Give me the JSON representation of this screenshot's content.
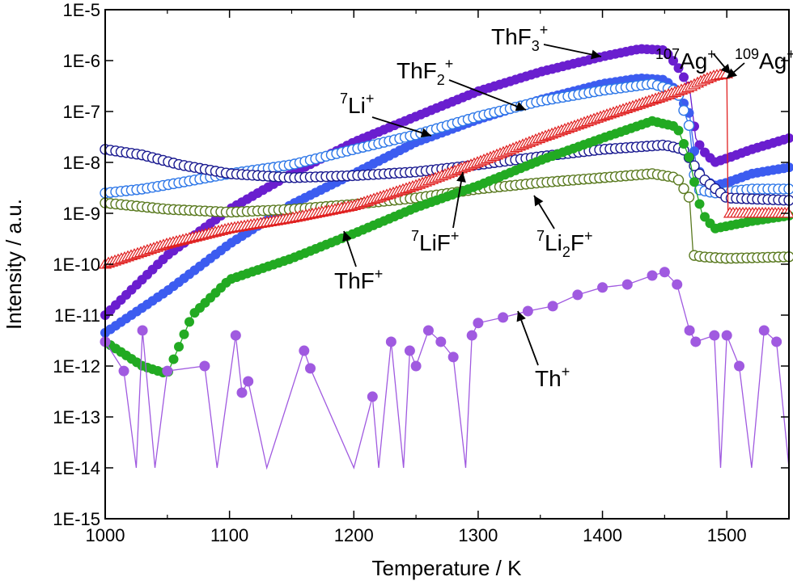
{
  "chart_data": {
    "type": "scatter",
    "title": "",
    "xlabel": "Temperature / K",
    "ylabel": "Intensity / a.u.",
    "xlim": [
      1000,
      1550
    ],
    "ylim_log10": [
      -15,
      -5
    ],
    "yscale": "log",
    "x_ticks": [
      1000,
      1100,
      1200,
      1300,
      1400,
      1500
    ],
    "x_tick_labels": [
      "1000",
      "1100",
      "1200",
      "1300",
      "1400",
      "1500"
    ],
    "y_tick_labels": [
      "1E-15",
      "1E-14",
      "1E-13",
      "1E-12",
      "1E-11",
      "1E-10",
      "1E-9",
      "1E-8",
      "1E-7",
      "1E-6",
      "1E-5"
    ],
    "grid": false,
    "series": [
      {
        "name": "ThF3+",
        "color": "#6a1ecf",
        "marker": "filled-circle",
        "x": [
          1000,
          1050,
          1100,
          1150,
          1200,
          1250,
          1300,
          1350,
          1400,
          1430,
          1450,
          1460,
          1470,
          1475,
          1480,
          1490,
          1500,
          1520,
          1550
        ],
        "y": [
          1e-11,
          1.5e-10,
          1.2e-09,
          6e-09,
          2.5e-08,
          8e-08,
          2.5e-07,
          6e-07,
          1.2e-06,
          1.7e-06,
          1.6e-06,
          8e-07,
          3e-07,
          3e-08,
          1.8e-08,
          1e-08,
          1.2e-08,
          1.8e-08,
          3e-08
        ]
      },
      {
        "name": "ThF2+",
        "color": "#3c5cf0",
        "marker": "filled-circle",
        "x": [
          1000,
          1050,
          1100,
          1150,
          1200,
          1250,
          1300,
          1350,
          1400,
          1430,
          1450,
          1460,
          1470,
          1475,
          1480,
          1490,
          1500,
          1520,
          1550
        ],
        "y": [
          4.5e-12,
          3e-11,
          2.5e-10,
          1.5e-09,
          6e-09,
          2.5e-08,
          7e-08,
          1.7e-07,
          3.5e-07,
          4.5e-07,
          4.2e-07,
          2.5e-07,
          9e-08,
          1e-08,
          5e-09,
          3.5e-09,
          4e-09,
          6e-09,
          8e-09
        ]
      },
      {
        "name": "7Li+",
        "color": "#2f78e8",
        "marker": "open-circle",
        "x": [
          1000,
          1030,
          1060,
          1100,
          1150,
          1200,
          1250,
          1300,
          1350,
          1400,
          1440,
          1460,
          1470,
          1475,
          1490,
          1520,
          1550
        ],
        "y": [
          2.5e-09,
          3e-09,
          4e-09,
          6e-09,
          9e-09,
          1.8e-08,
          3.5e-08,
          8e-08,
          1.6e-07,
          2.6e-07,
          3.5e-07,
          2.5e-07,
          5e-08,
          3e-09,
          2.5e-09,
          3e-09,
          3e-09
        ]
      },
      {
        "name": "7LiF+",
        "color": "#1a1a90",
        "marker": "open-circle",
        "x": [
          1000,
          1030,
          1060,
          1100,
          1150,
          1200,
          1250,
          1300,
          1350,
          1400,
          1450,
          1465,
          1470,
          1480,
          1500,
          1550
        ],
        "y": [
          1.8e-08,
          1.4e-08,
          9e-09,
          6e-09,
          5e-09,
          5.5e-09,
          6.5e-09,
          9e-09,
          1.3e-08,
          1.8e-08,
          2.2e-08,
          1.8e-08,
          1.2e-08,
          5e-09,
          2e-09,
          1.8e-09
        ]
      },
      {
        "name": "7Li2F+",
        "color": "#5a7a20",
        "marker": "open-circle",
        "x": [
          1000,
          1050,
          1100,
          1150,
          1200,
          1250,
          1300,
          1350,
          1400,
          1440,
          1460,
          1470,
          1473,
          1480,
          1500,
          1550
        ],
        "y": [
          1.6e-09,
          1.2e-09,
          1.05e-09,
          1.2e-09,
          1.5e-09,
          2e-09,
          3e-09,
          4e-09,
          5e-09,
          6e-09,
          5e-09,
          2e-09,
          1.5e-10,
          1.4e-10,
          1.3e-10,
          1.4e-10
        ]
      },
      {
        "name": "ThF+",
        "color": "#22aa22",
        "marker": "filled-circle",
        "x": [
          1000,
          1030,
          1050,
          1070,
          1100,
          1150,
          1200,
          1250,
          1300,
          1350,
          1400,
          1440,
          1460,
          1470,
          1475,
          1480,
          1490,
          1520,
          1550
        ],
        "y": [
          3e-12,
          1e-12,
          7e-13,
          1e-11,
          5e-11,
          1.3e-10,
          4e-10,
          1.3e-09,
          3.5e-09,
          1.1e-08,
          3e-08,
          6.5e-08,
          5e-08,
          1.2e-08,
          3e-09,
          1e-09,
          5e-10,
          7e-10,
          9e-10
        ]
      },
      {
        "name": "107Ag+ / 109Ag+",
        "color": "#e02020",
        "marker": "open-triangle",
        "x": [
          1000,
          1050,
          1100,
          1150,
          1200,
          1250,
          1300,
          1350,
          1400,
          1450,
          1470,
          1480,
          1490,
          1500,
          1501,
          1520,
          1550
        ],
        "y": [
          1e-10,
          2.5e-10,
          5e-10,
          8e-10,
          1.4e-09,
          3.5e-09,
          1e-08,
          3e-08,
          8e-08,
          2e-07,
          3e-07,
          4e-07,
          5e-07,
          5.5e-07,
          1e-09,
          1e-09,
          1e-09
        ]
      },
      {
        "name": "Th+",
        "color": "#a05ae0",
        "marker": "filled-circle",
        "x": [
          1000,
          1015,
          1025,
          1030,
          1040,
          1050,
          1080,
          1090,
          1105,
          1110,
          1115,
          1130,
          1160,
          1165,
          1200,
          1215,
          1220,
          1230,
          1240,
          1245,
          1250,
          1260,
          1270,
          1280,
          1290,
          1295,
          1300,
          1320,
          1340,
          1360,
          1380,
          1400,
          1420,
          1440,
          1450,
          1460,
          1470,
          1475,
          1490,
          1495,
          1500,
          1510,
          1520,
          1530,
          1540,
          1550
        ],
        "y": [
          3e-12,
          8e-13,
          1e-14,
          5e-12,
          1e-14,
          8e-13,
          1e-12,
          1e-14,
          4e-12,
          3e-13,
          5e-13,
          1e-14,
          2e-12,
          9e-13,
          1e-14,
          2.5e-13,
          1e-14,
          3e-12,
          1e-14,
          2e-12,
          1e-12,
          5e-12,
          3e-12,
          1.5e-12,
          1e-14,
          4e-12,
          7e-12,
          9e-12,
          1.2e-11,
          1.5e-11,
          2.5e-11,
          3.5e-11,
          4e-11,
          6e-11,
          7e-11,
          4e-11,
          5e-12,
          3e-12,
          4e-12,
          1e-14,
          4e-12,
          1e-12,
          1e-14,
          5e-12,
          3e-12,
          1e-14
        ]
      }
    ],
    "annotations": [
      {
        "label": "ThF",
        "sub": "3",
        "sup": "+"
      },
      {
        "label": "ThF",
        "sub": "2",
        "sup": "+"
      },
      {
        "label": "Li",
        "presup": "7",
        "sup": "+"
      },
      {
        "label": "LiF",
        "presup": "7",
        "sup": "+"
      },
      {
        "label": "Li",
        "presup": "7",
        "sub": "2",
        "tail": "F",
        "sup": "+"
      },
      {
        "label": "ThF",
        "sup": "+"
      },
      {
        "label": "Th",
        "sup": "+"
      },
      {
        "label": "Ag",
        "presup": "107",
        "sup": "+"
      },
      {
        "label": "Ag",
        "presup": "109",
        "sup": "+"
      }
    ]
  }
}
